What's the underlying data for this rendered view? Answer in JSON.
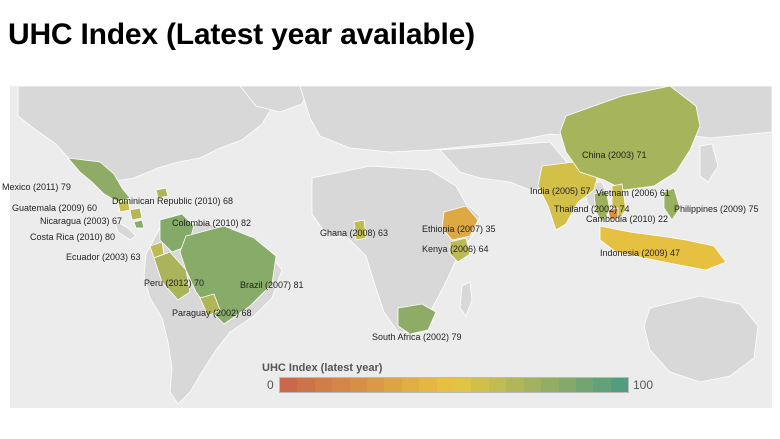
{
  "title": "UHC Index (Latest year available)",
  "colors": {
    "background": "#ececec",
    "land_no_data": "#d8d8d8",
    "border": "#ffffff",
    "scale_low": "#c8644a",
    "scale_mid": "#e8c640",
    "scale_high": "#4c9a82"
  },
  "map_data": {
    "type": "choropleth",
    "metric": "UHC Index",
    "scale": {
      "min": 0,
      "max": 100
    },
    "countries": [
      {
        "name": "Mexico",
        "year": 2011,
        "value": 79,
        "label": "Mexico (2011) 79"
      },
      {
        "name": "Guatemala",
        "year": 2009,
        "value": 60,
        "label": "Guatemala (2009) 60"
      },
      {
        "name": "Nicaragua",
        "year": 2003,
        "value": 67,
        "label": "Nicaragua (2003) 67"
      },
      {
        "name": "Costa Rica",
        "year": 2010,
        "value": 80,
        "label": "Costa Rica (2010) 80"
      },
      {
        "name": "Dominican Republic",
        "year": 2010,
        "value": 68,
        "label": "Dominican Republic (2010) 68"
      },
      {
        "name": "Colombia",
        "year": 2010,
        "value": 82,
        "label": "Colombia (2010) 82"
      },
      {
        "name": "Ecuador",
        "year": 2003,
        "value": 63,
        "label": "Ecuador (2003) 63"
      },
      {
        "name": "Peru",
        "year": 2012,
        "value": 70,
        "label": "Peru (2012) 70"
      },
      {
        "name": "Brazil",
        "year": 2007,
        "value": 81,
        "label": "Brazil (2007) 81"
      },
      {
        "name": "Paraguay",
        "year": 2002,
        "value": 68,
        "label": "Paraguay (2002) 68"
      },
      {
        "name": "Ghana",
        "year": 2008,
        "value": 63,
        "label": "Ghana (2008) 63"
      },
      {
        "name": "Ethiopia",
        "year": 2007,
        "value": 35,
        "label": "Ethiopia (2007) 35"
      },
      {
        "name": "Kenya",
        "year": 2006,
        "value": 64,
        "label": "Kenya (2006) 64"
      },
      {
        "name": "South Africa",
        "year": 2002,
        "value": 79,
        "label": "South Africa (2002) 79"
      },
      {
        "name": "India",
        "year": 2005,
        "value": 57,
        "label": "India (2005) 57"
      },
      {
        "name": "China",
        "year": 2003,
        "value": 71,
        "label": "China (2003) 71"
      },
      {
        "name": "Vietnam",
        "year": 2006,
        "value": 61,
        "label": "Vietnam (2006) 61"
      },
      {
        "name": "Thailand",
        "year": 2002,
        "value": 74,
        "label": "Thailand (2002) 74"
      },
      {
        "name": "Cambodia",
        "year": 2010,
        "value": 22,
        "label": "Cambodia (2010) 22"
      },
      {
        "name": "Philippines",
        "year": 2009,
        "value": 75,
        "label": "Philippines (2009) 75"
      },
      {
        "name": "Indonesia",
        "year": 2009,
        "value": 47,
        "label": "Indonesia (2009) 47"
      }
    ]
  },
  "legend": {
    "title": "UHC Index (latest year)",
    "min_label": "0",
    "max_label": "100",
    "steps": 20
  }
}
